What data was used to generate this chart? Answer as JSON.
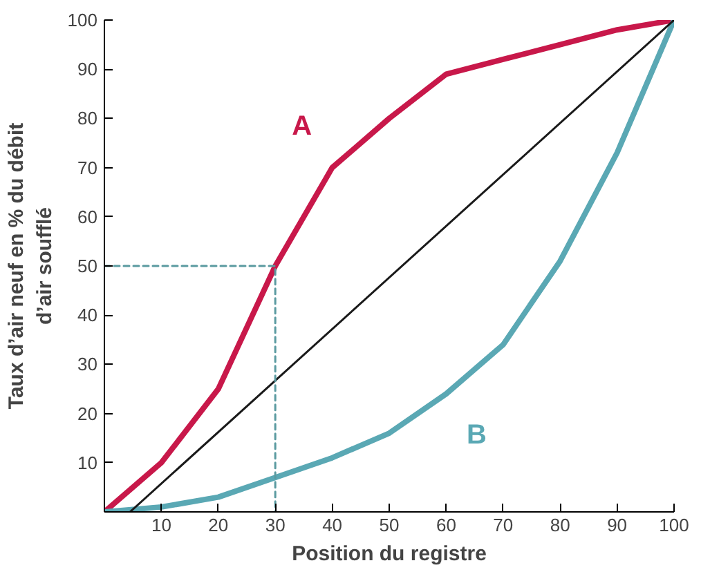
{
  "chart_data": {
    "type": "line",
    "xlabel": "Position du registre",
    "ylabel": "Taux d’air neuf en % du débit d’air soufflé",
    "xlim": [
      0,
      100
    ],
    "ylim": [
      0,
      100
    ],
    "xticks": [
      10,
      20,
      30,
      40,
      50,
      60,
      70,
      80,
      90,
      100
    ],
    "yticks": [
      10,
      20,
      30,
      40,
      50,
      60,
      70,
      80,
      90,
      100
    ],
    "grid": false,
    "legend": false,
    "marker": "none",
    "series": [
      {
        "name": "A",
        "color": "#c8184a",
        "x": [
          0,
          10,
          20,
          30,
          40,
          50,
          60,
          70,
          80,
          90,
          100
        ],
        "values": [
          0,
          10,
          25,
          50,
          70,
          80,
          89,
          92,
          95,
          98,
          100
        ]
      },
      {
        "name": "B",
        "color": "#5aa8b4",
        "x": [
          0,
          10,
          20,
          30,
          40,
          50,
          60,
          70,
          80,
          90,
          100
        ],
        "values": [
          0,
          1,
          3,
          7,
          11,
          16,
          24,
          34,
          51,
          73,
          100
        ]
      },
      {
        "color": "#1a1a1a",
        "x": [
          4.5,
          100
        ],
        "values": [
          0,
          100
        ]
      },
      {
        "color": "#5a9aa0",
        "line_style": "dashed",
        "x": [
          0,
          30,
          30
        ],
        "values": [
          50,
          50,
          0
        ]
      }
    ]
  }
}
